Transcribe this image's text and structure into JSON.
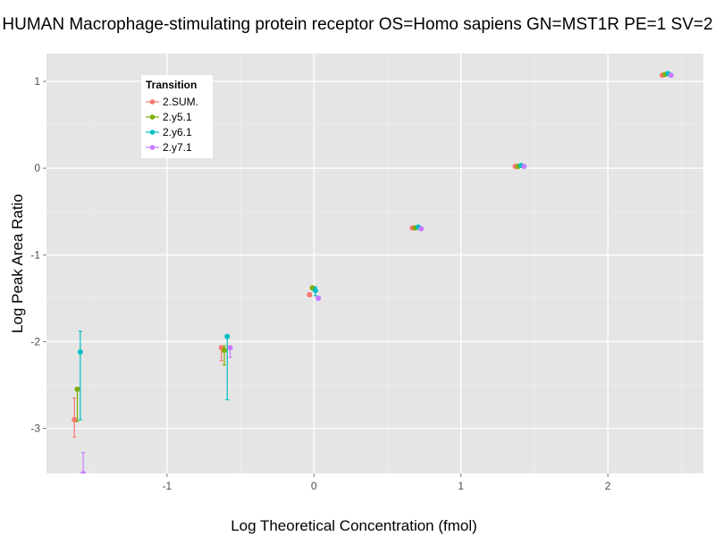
{
  "chart_data": {
    "type": "scatter",
    "title": "HUMAN Macrophage-stimulating protein receptor OS=Homo sapiens GN=MST1R PE=1 SV=2",
    "xlabel": "Log Theoretical Concentration (fmol)",
    "ylabel": "Log Peak Area Ratio",
    "xlim": [
      -1.82,
      2.65
    ],
    "ylim": [
      -3.52,
      1.32
    ],
    "x_ticks": [
      -1,
      0,
      1,
      2
    ],
    "y_ticks": [
      -3,
      -2,
      -1,
      0,
      1
    ],
    "x_tick_labels": [
      "-1",
      "0",
      "1",
      "2"
    ],
    "y_tick_labels": [
      "-3",
      "-2",
      "-1",
      "0",
      "1"
    ],
    "grid": true,
    "legend": {
      "title": "Transition",
      "position": "top-left"
    },
    "series": [
      {
        "name": "2.SUM.",
        "color": "#F8766D",
        "points": [
          {
            "x": -1.6,
            "y": -2.9,
            "ymin": -3.1,
            "ymax": -2.65
          },
          {
            "x": -0.6,
            "y": -2.07,
            "ymin": -2.22,
            "ymax": -2.05
          },
          {
            "x": 0.0,
            "y": -1.46,
            "ymin": -1.48,
            "ymax": -1.44
          },
          {
            "x": 0.7,
            "y": -0.69,
            "ymin": -0.7,
            "ymax": -0.68
          },
          {
            "x": 1.4,
            "y": 0.02,
            "ymin": 0.01,
            "ymax": 0.03
          },
          {
            "x": 2.4,
            "y": 1.07,
            "ymin": 1.06,
            "ymax": 1.08
          }
        ]
      },
      {
        "name": "2.y5.1",
        "color": "#7CAE00",
        "points": [
          {
            "x": -1.6,
            "y": -2.55,
            "ymin": -2.92,
            "ymax": -2.55
          },
          {
            "x": -0.6,
            "y": -2.1,
            "ymin": -2.27,
            "ymax": -2.05
          },
          {
            "x": 0.0,
            "y": -1.38,
            "ymin": -1.4,
            "ymax": -1.36
          },
          {
            "x": 0.7,
            "y": -0.69,
            "ymin": -0.7,
            "ymax": -0.68
          },
          {
            "x": 1.4,
            "y": 0.02,
            "ymin": 0.01,
            "ymax": 0.03
          },
          {
            "x": 2.4,
            "y": 1.08,
            "ymin": 1.07,
            "ymax": 1.09
          }
        ]
      },
      {
        "name": "2.y6.1",
        "color": "#00BFC4",
        "points": [
          {
            "x": -1.6,
            "y": -2.12,
            "ymin": -2.9,
            "ymax": -1.88
          },
          {
            "x": -0.6,
            "y": -1.94,
            "ymin": -2.67,
            "ymax": -1.94
          },
          {
            "x": 0.0,
            "y": -1.41,
            "ymin": -1.47,
            "ymax": -1.37
          },
          {
            "x": 0.7,
            "y": -0.68,
            "ymin": -0.69,
            "ymax": -0.67
          },
          {
            "x": 1.4,
            "y": 0.03,
            "ymin": 0.02,
            "ymax": 0.04
          },
          {
            "x": 2.4,
            "y": 1.09,
            "ymin": 1.08,
            "ymax": 1.1
          }
        ]
      },
      {
        "name": "2.y7.1",
        "color": "#C77CFF",
        "points": [
          {
            "x": -1.6,
            "y": -3.52,
            "ymin": -3.52,
            "ymax": -3.28
          },
          {
            "x": -0.6,
            "y": -2.07,
            "ymin": -2.18,
            "ymax": -2.05
          },
          {
            "x": 0.0,
            "y": -1.5,
            "ymin": -1.52,
            "ymax": -1.48
          },
          {
            "x": 0.7,
            "y": -0.7,
            "ymin": -0.71,
            "ymax": -0.69
          },
          {
            "x": 1.4,
            "y": 0.02,
            "ymin": 0.01,
            "ymax": 0.03
          },
          {
            "x": 2.4,
            "y": 1.07,
            "ymin": 1.06,
            "ymax": 1.08
          }
        ]
      }
    ]
  }
}
